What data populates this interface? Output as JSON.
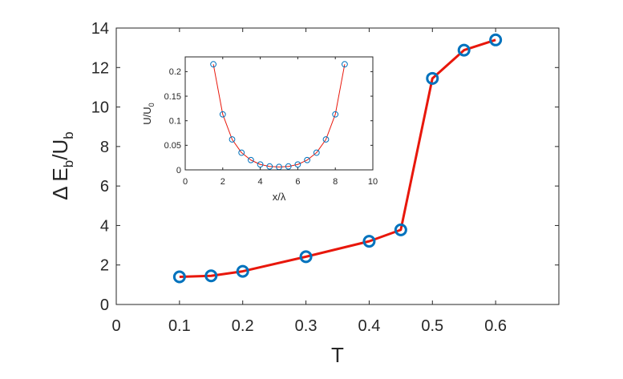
{
  "colors": {
    "main_marker": "#0072BD",
    "line": "#E8170B",
    "axis": "#262626",
    "inset_marker": "#0072BD"
  },
  "chart_data": [
    {
      "type": "line",
      "title": "",
      "xlabel": "T",
      "ylabel_parts": {
        "prefix": "Δ E",
        "sub1": "b",
        "mid": "/U",
        "sub2": "b"
      },
      "xlim": [
        0,
        0.7
      ],
      "ylim": [
        0,
        14
      ],
      "xticks": [
        0,
        0.1,
        0.2,
        0.3,
        0.4,
        0.5,
        0.6
      ],
      "xtick_labels": [
        "0",
        "0.1",
        "0.2",
        "0.3",
        "0.4",
        "0.5",
        "0.6"
      ],
      "yticks": [
        0,
        2,
        4,
        6,
        8,
        10,
        12,
        14
      ],
      "ytick_labels": [
        "0",
        "2",
        "4",
        "6",
        "8",
        "10",
        "12",
        "14"
      ],
      "grid": false,
      "series": [
        {
          "x": [
            0.1,
            0.15,
            0.2,
            0.3,
            0.4,
            0.45,
            0.5,
            0.55,
            0.6
          ],
          "y": [
            1.4,
            1.45,
            1.68,
            2.42,
            3.2,
            3.78,
            11.45,
            12.88,
            13.4
          ],
          "marker": "circle"
        }
      ]
    },
    {
      "type": "line",
      "title": "",
      "xlabel_parts": {
        "main": "x/",
        "greek": "λ"
      },
      "ylabel_parts": {
        "main": "U/U",
        "sub": "0"
      },
      "xlim": [
        0,
        10
      ],
      "ylim": [
        0,
        0.23
      ],
      "xticks": [
        0,
        2,
        4,
        6,
        8,
        10
      ],
      "xtick_labels": [
        "0",
        "2",
        "4",
        "6",
        "8",
        "10"
      ],
      "yticks": [
        0,
        0.05,
        0.1,
        0.15,
        0.2
      ],
      "ytick_labels": [
        "0",
        "0.05",
        "0.1",
        "0.15",
        "0.2"
      ],
      "grid": false,
      "series": [
        {
          "x": [
            1.5,
            2.0,
            2.5,
            3.0,
            3.5,
            4.0,
            4.5,
            5.0,
            5.5,
            6.0,
            6.5,
            7.0,
            7.5,
            8.0,
            8.5
          ],
          "y": [
            0.215,
            0.113,
            0.062,
            0.035,
            0.02,
            0.011,
            0.007,
            0.006,
            0.007,
            0.011,
            0.02,
            0.035,
            0.062,
            0.113,
            0.215
          ],
          "marker": "circle"
        }
      ]
    }
  ]
}
